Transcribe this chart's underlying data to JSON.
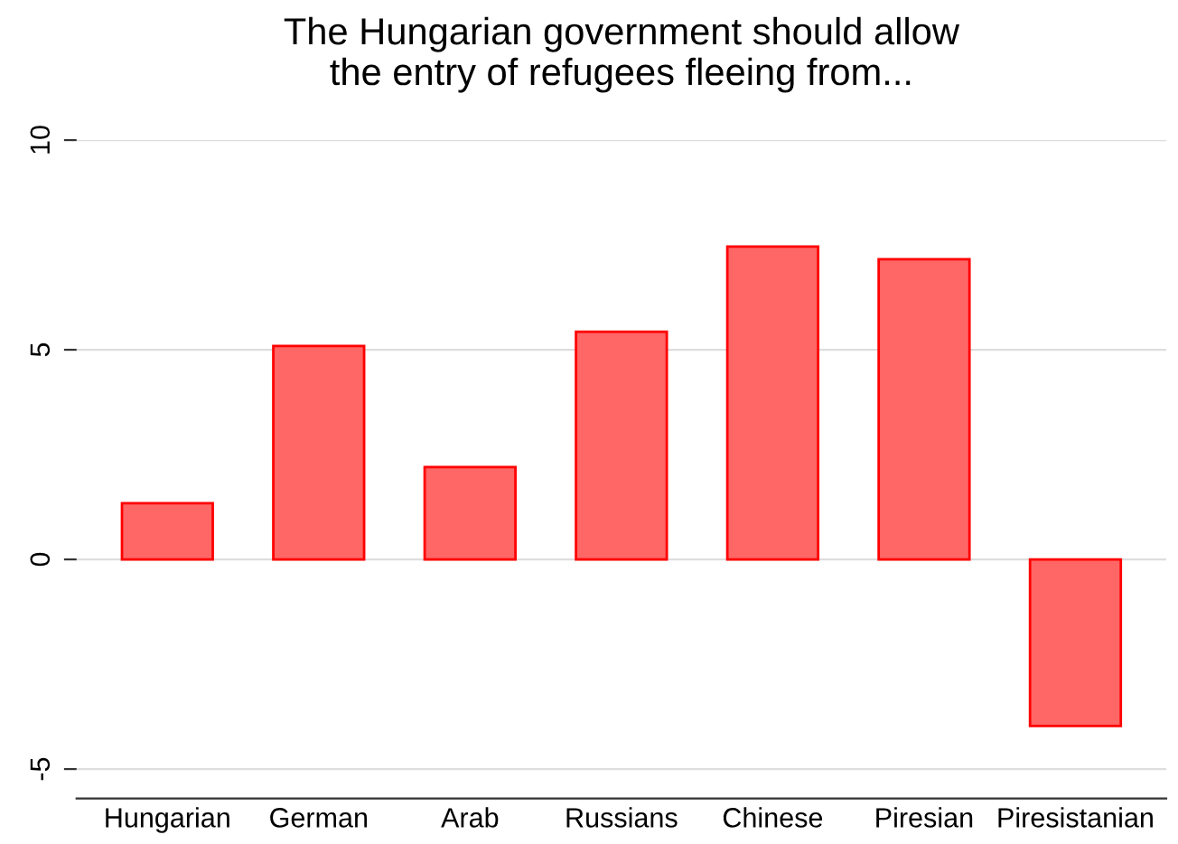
{
  "chart_data": {
    "type": "bar",
    "title": "The Hungarian government should allow\nthe entry of refugees fleeing from...",
    "categories": [
      "Hungarian",
      "German",
      "Arab",
      "Russians",
      "Chinese",
      "Piresian",
      "Piresistanian"
    ],
    "values": [
      1.34,
      5.09,
      2.2,
      5.43,
      7.46,
      7.16,
      -3.97
    ],
    "color": "#ff6666",
    "ylim": [
      -5.7,
      10
    ],
    "yticks": [
      -5,
      0,
      5,
      10
    ],
    "grid": "y"
  }
}
